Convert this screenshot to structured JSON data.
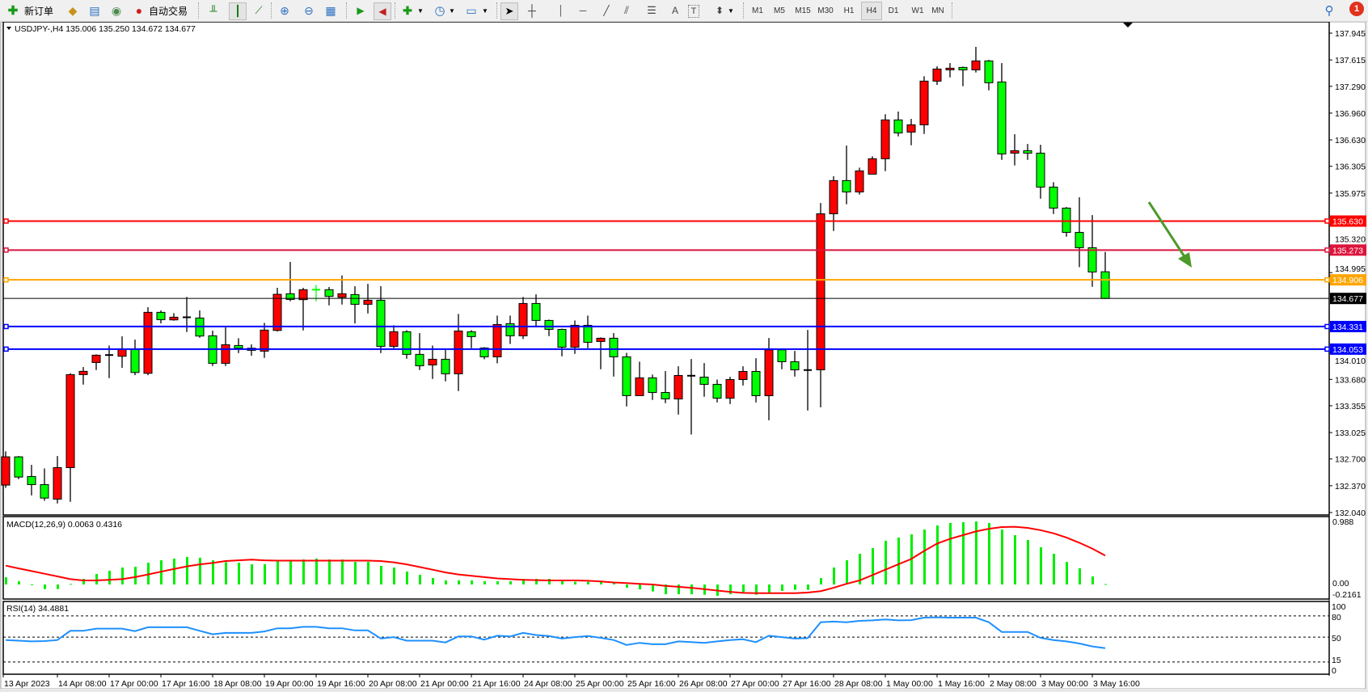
{
  "toolbar": {
    "new_order_label": "新订单",
    "auto_trading_label": "自动交易",
    "timeframes": [
      "M1",
      "M5",
      "M15",
      "M30",
      "H1",
      "H4",
      "D1",
      "W1",
      "MN"
    ],
    "active_timeframe": "H4",
    "notification_count": "1",
    "text_tool_label": "A",
    "label_tool_label": "T"
  },
  "chart": {
    "symbol_header": "USDJPY-,H4  135.006 135.250 134.672 134.677",
    "macd_header": "MACD(12,26,9) 0.0063 0.4316",
    "rsi_header": "RSI(14) 34.4881",
    "colors": {
      "bull_candle": "#ff0000",
      "bear_candle": "#00ff00",
      "macd_histogram": "#00ee00",
      "macd_signal": "#ff0000",
      "rsi_line": "#1e90ff",
      "arrow": "#4c9a2a"
    }
  },
  "chart_data": {
    "type": "candlestick",
    "symbol": "USDJPY-",
    "timeframe": "H4",
    "price_axis_labels": [
      "137.945",
      "137.615",
      "137.290",
      "136.960",
      "136.630",
      "136.305",
      "135.975",
      "135.320",
      "134.995",
      "134.010",
      "133.680",
      "133.355",
      "133.025",
      "132.700",
      "132.370",
      "132.040"
    ],
    "ylim": [
      132.04,
      137.945
    ],
    "time_labels": [
      "13 Apr 2023",
      "14 Apr 08:00",
      "17 Apr 00:00",
      "17 Apr 16:00",
      "18 Apr 08:00",
      "19 Apr 00:00",
      "19 Apr 16:00",
      "20 Apr 08:00",
      "21 Apr 00:00",
      "21 Apr 16:00",
      "24 Apr 08:00",
      "25 Apr 00:00",
      "25 Apr 16:00",
      "26 Apr 08:00",
      "27 Apr 00:00",
      "27 Apr 16:00",
      "28 Apr 08:00",
      "1 May 00:00",
      "1 May 16:00",
      "2 May 08:00",
      "3 May 00:00",
      "3 May 16:00"
    ],
    "ohlc_fields": [
      "open",
      "high",
      "low",
      "close"
    ],
    "ohlc": [
      [
        132.378,
        132.793,
        132.344,
        132.726
      ],
      [
        132.726,
        132.736,
        132.451,
        132.477
      ],
      [
        132.484,
        132.627,
        132.251,
        132.384
      ],
      [
        132.384,
        132.583,
        132.185,
        132.218
      ],
      [
        132.205,
        132.736,
        132.152,
        132.593
      ],
      [
        132.593,
        133.755,
        132.172,
        133.739
      ],
      [
        133.739,
        133.832,
        133.616,
        133.779
      ],
      [
        133.888,
        133.988,
        133.795,
        133.978
      ],
      [
        133.978,
        134.097,
        133.696,
        133.98
      ],
      [
        133.965,
        134.21,
        133.822,
        134.054
      ],
      [
        134.054,
        134.17,
        133.732,
        133.765
      ],
      [
        133.755,
        134.569,
        133.732,
        134.506
      ],
      [
        134.506,
        134.529,
        134.37,
        134.416
      ],
      [
        134.413,
        134.496,
        134.403,
        134.446
      ],
      [
        134.443,
        134.695,
        134.263,
        134.445
      ],
      [
        134.436,
        134.529,
        134.194,
        134.214
      ],
      [
        134.217,
        134.28,
        133.845,
        133.878
      ],
      [
        133.878,
        134.32,
        133.845,
        134.107
      ],
      [
        134.097,
        134.187,
        134.004,
        134.064
      ],
      [
        134.064,
        134.111,
        133.971,
        134.038
      ],
      [
        134.028,
        134.376,
        133.945,
        134.287
      ],
      [
        134.283,
        134.808,
        134.27,
        134.728
      ],
      [
        134.735,
        135.127,
        134.642,
        134.665
      ],
      [
        134.662,
        134.808,
        134.283,
        134.785
      ],
      [
        134.787,
        134.844,
        134.642,
        134.785
      ],
      [
        134.785,
        134.818,
        134.592,
        134.702
      ],
      [
        134.691,
        134.96,
        134.602,
        134.735
      ],
      [
        134.725,
        134.828,
        134.369,
        134.605
      ],
      [
        134.605,
        134.857,
        134.492,
        134.655
      ],
      [
        134.655,
        134.828,
        134.004,
        134.087
      ],
      [
        134.087,
        134.346,
        134.064,
        134.267
      ],
      [
        134.267,
        134.286,
        133.934,
        133.988
      ],
      [
        133.988,
        134.25,
        133.795,
        133.848
      ],
      [
        133.858,
        134.097,
        133.685,
        133.928
      ],
      [
        133.928,
        134.044,
        133.656,
        133.749
      ],
      [
        133.749,
        134.486,
        133.536,
        134.276
      ],
      [
        134.267,
        134.286,
        134.064,
        134.207
      ],
      [
        134.067,
        134.077,
        133.928,
        133.958
      ],
      [
        133.958,
        134.466,
        133.878,
        134.356
      ],
      [
        134.366,
        134.466,
        134.117,
        134.217
      ],
      [
        134.217,
        134.695,
        134.177,
        134.615
      ],
      [
        134.615,
        134.728,
        134.336,
        134.406
      ],
      [
        134.406,
        134.416,
        134.213,
        134.296
      ],
      [
        134.296,
        134.306,
        133.964,
        134.077
      ],
      [
        134.077,
        134.406,
        133.994,
        134.346
      ],
      [
        134.346,
        134.466,
        134.064,
        134.137
      ],
      [
        134.147,
        134.197,
        133.805,
        134.187
      ],
      [
        134.187,
        134.25,
        133.715,
        133.958
      ],
      [
        133.958,
        134.007,
        133.347,
        133.48
      ],
      [
        133.48,
        133.898,
        133.48,
        133.699
      ],
      [
        133.699,
        133.739,
        133.427,
        133.519
      ],
      [
        133.519,
        133.782,
        133.387,
        133.44
      ],
      [
        133.439,
        133.841,
        133.247,
        133.728
      ],
      [
        133.727,
        133.931,
        133.001,
        133.725
      ],
      [
        133.708,
        133.881,
        133.466,
        133.619
      ],
      [
        133.619,
        133.678,
        133.396,
        133.449
      ],
      [
        133.449,
        133.712,
        133.376,
        133.678
      ],
      [
        133.678,
        133.841,
        133.605,
        133.778
      ],
      [
        133.778,
        133.941,
        133.396,
        133.479
      ],
      [
        133.479,
        134.19,
        133.177,
        134.044
      ],
      [
        134.044,
        134.044,
        133.805,
        133.898
      ],
      [
        133.898,
        134.03,
        133.715,
        133.798
      ],
      [
        133.796,
        134.289,
        133.297,
        133.795
      ],
      [
        133.798,
        135.853,
        133.336,
        135.72
      ],
      [
        135.72,
        136.182,
        135.508,
        136.129
      ],
      [
        136.129,
        136.56,
        135.837,
        135.989
      ],
      [
        135.989,
        136.288,
        135.956,
        136.248
      ],
      [
        136.208,
        136.428,
        136.208,
        136.398
      ],
      [
        136.398,
        136.946,
        136.245,
        136.876
      ],
      [
        136.876,
        136.979,
        136.673,
        136.716
      ],
      [
        136.726,
        136.889,
        136.564,
        136.816
      ],
      [
        136.816,
        137.414,
        136.703,
        137.354
      ],
      [
        137.354,
        137.536,
        137.307,
        137.503
      ],
      [
        137.493,
        137.576,
        137.4,
        137.513
      ],
      [
        137.523,
        137.533,
        137.291,
        137.493
      ],
      [
        137.493,
        137.776,
        137.46,
        137.603
      ],
      [
        137.603,
        137.616,
        137.241,
        137.334
      ],
      [
        137.344,
        137.576,
        136.384,
        136.457
      ],
      [
        136.467,
        136.7,
        136.315,
        136.497
      ],
      [
        136.497,
        136.58,
        136.384,
        136.467
      ],
      [
        136.467,
        136.57,
        135.906,
        136.049
      ],
      [
        136.049,
        136.109,
        135.717,
        135.79
      ],
      [
        135.79,
        135.803,
        135.438,
        135.491
      ],
      [
        135.491,
        135.923,
        135.063,
        135.302
      ],
      [
        135.302,
        135.704,
        134.821,
        135.003
      ],
      [
        135.006,
        135.25,
        134.672,
        134.677
      ]
    ],
    "horizontal_lines": [
      {
        "price": "135.630",
        "color": "#ff0000"
      },
      {
        "price": "135.273",
        "color": "#dc143c"
      },
      {
        "price": "134.906",
        "color": "#ffa500"
      },
      {
        "price": "134.331",
        "color": "#0000ff"
      },
      {
        "price": "134.053",
        "color": "#0000ff"
      }
    ],
    "current_price": {
      "price": "134.677",
      "color": "#000000"
    },
    "annotation": {
      "type": "arrow",
      "direction": "down-right",
      "color": "#4c9a2a"
    },
    "macd": {
      "params": "12,26,9",
      "axis_labels": [
        "0.988",
        "0.00",
        "-0.2161"
      ],
      "ylim": [
        -0.2161,
        0.988
      ],
      "histogram": [
        0.108,
        0.048,
        -0.008,
        -0.068,
        -0.068,
        0.008,
        0.084,
        0.157,
        0.205,
        0.253,
        0.265,
        0.325,
        0.361,
        0.386,
        0.41,
        0.398,
        0.361,
        0.333,
        0.325,
        0.301,
        0.301,
        0.349,
        0.349,
        0.373,
        0.386,
        0.373,
        0.373,
        0.337,
        0.337,
        0.277,
        0.253,
        0.193,
        0.145,
        0.096,
        0.06,
        0.06,
        0.06,
        0.048,
        0.048,
        0.048,
        0.084,
        0.084,
        0.084,
        0.06,
        0.04,
        0.04,
        0.04,
        0.02,
        -0.048,
        -0.072,
        -0.104,
        -0.145,
        -0.145,
        -0.145,
        -0.153,
        -0.169,
        -0.145,
        -0.12,
        -0.153,
        -0.12,
        -0.096,
        -0.08,
        -0.08,
        0.096,
        0.253,
        0.361,
        0.458,
        0.542,
        0.651,
        0.699,
        0.747,
        0.819,
        0.88,
        0.916,
        0.928,
        0.94,
        0.916,
        0.819,
        0.735,
        0.663,
        0.554,
        0.458,
        0.337,
        0.241,
        0.12,
        0.0063
      ],
      "signal": [
        0.281,
        0.24,
        0.2,
        0.16,
        0.12,
        0.08,
        0.06,
        0.06,
        0.07,
        0.08,
        0.11,
        0.15,
        0.19,
        0.23,
        0.27,
        0.3,
        0.32,
        0.35,
        0.36,
        0.37,
        0.36,
        0.355,
        0.355,
        0.355,
        0.355,
        0.355,
        0.355,
        0.355,
        0.355,
        0.35,
        0.33,
        0.3,
        0.26,
        0.22,
        0.18,
        0.15,
        0.13,
        0.11,
        0.09,
        0.08,
        0.07,
        0.065,
        0.06,
        0.06,
        0.06,
        0.055,
        0.045,
        0.03,
        0.02,
        0.01,
        0.0,
        -0.02,
        -0.035,
        -0.05,
        -0.07,
        -0.09,
        -0.11,
        -0.125,
        -0.13,
        -0.13,
        -0.13,
        -0.13,
        -0.12,
        -0.1,
        -0.05,
        0.01,
        0.06,
        0.14,
        0.22,
        0.3,
        0.38,
        0.5,
        0.61,
        0.68,
        0.735,
        0.79,
        0.83,
        0.855,
        0.86,
        0.843,
        0.81,
        0.763,
        0.7,
        0.622,
        0.535,
        0.4316
      ]
    },
    "rsi": {
      "period": 14,
      "axis_labels": [
        "100",
        "80",
        "50",
        "15",
        "0"
      ],
      "levels": [
        80,
        50,
        15
      ],
      "ylim": [
        0,
        100
      ],
      "values": [
        46,
        45,
        44,
        44.5,
        46,
        59,
        59,
        62,
        62,
        62,
        58.5,
        64,
        64,
        64,
        64,
        59,
        54,
        56,
        56,
        56,
        58,
        62.5,
        62.5,
        64.5,
        64.5,
        62.5,
        62.5,
        59.5,
        59.5,
        48,
        50,
        45,
        45,
        45,
        42.5,
        51,
        51,
        46.5,
        52,
        51,
        56,
        53,
        51.5,
        48,
        50,
        51.7,
        49,
        46,
        39,
        42,
        40,
        40,
        44,
        43,
        42,
        44,
        46,
        47,
        43,
        52,
        50,
        48,
        48.6,
        71,
        72,
        71,
        73,
        73.7,
        75,
        73.7,
        74,
        77.5,
        78,
        77.5,
        77.5,
        77.5,
        71,
        57.4,
        57.4,
        57.4,
        49,
        46,
        44,
        41,
        37,
        34.4881
      ]
    }
  }
}
